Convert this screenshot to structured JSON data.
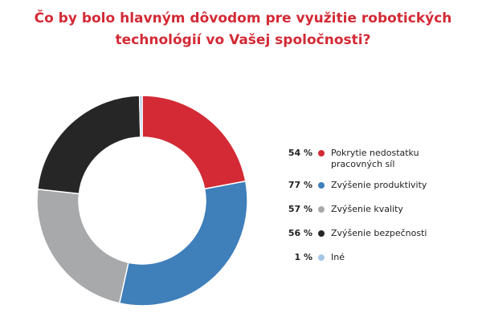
{
  "chart_data": {
    "type": "donut",
    "title": "Čo by bolo hlavným dôvodom pre využitie robotických technológií vo Vašej spoločnosti?",
    "categories": [
      "Pokrytie nedostatku pracovných síl",
      "Zvýšenie produktivity",
      "Zvýšenie kvality",
      "Zvýšenie bezpečnosti",
      "Iné"
    ],
    "values": [
      54,
      77,
      57,
      56,
      1
    ],
    "value_labels": [
      "54 %",
      "77 %",
      "57 %",
      "56 %",
      "1 %"
    ],
    "colors": [
      "#d32a35",
      "#3f7fba",
      "#a7a9aa",
      "#262626",
      "#a6c8e8"
    ],
    "legend": "right"
  }
}
